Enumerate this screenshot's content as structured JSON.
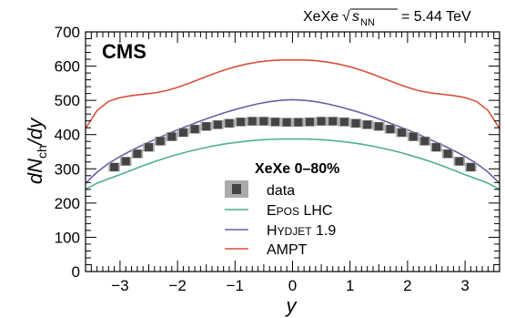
{
  "header": {
    "system": "XeXe",
    "sqrt_label": "s",
    "sqrt_sub": "NN",
    "energy": "= 5.44 TeV"
  },
  "experiment_label": "CMS",
  "colors": {
    "data_fill": "#444444",
    "data_syst": "#aaaaaa",
    "epos": "#4daf94",
    "hydjet": "#6b5fa8",
    "ampt": "#d9513b"
  },
  "chart_data": {
    "type": "line",
    "xlabel": "y",
    "ylabel_main": "dN",
    "ylabel_sub": "ch",
    "ylabel_tail": "/dy",
    "xlim": [
      -3.6,
      3.6
    ],
    "ylim": [
      0,
      700
    ],
    "xticks": [
      -3,
      -2,
      -1,
      0,
      1,
      2,
      3
    ],
    "yticks": [
      0,
      100,
      200,
      300,
      400,
      500,
      600,
      700
    ],
    "grid": false,
    "legend": {
      "placement": "center-right",
      "title": "XeXe 0–80%",
      "entries": [
        "data",
        "Epos LHC",
        "Hydjet 1.9",
        "AMPT"
      ]
    },
    "data_points": {
      "x": [
        -3.1,
        -2.9,
        -2.7,
        -2.5,
        -2.3,
        -2.1,
        -1.9,
        -1.7,
        -1.5,
        -1.3,
        -1.1,
        -0.9,
        -0.7,
        -0.5,
        -0.3,
        -0.1,
        0.1,
        0.3,
        0.5,
        0.7,
        0.9,
        1.1,
        1.3,
        1.5,
        1.7,
        1.9,
        2.1,
        2.3,
        2.5,
        2.7,
        2.9,
        3.1
      ],
      "y": [
        305,
        322,
        344,
        363,
        381,
        394,
        406,
        416,
        424,
        429,
        433,
        437,
        439,
        439,
        437,
        436,
        436,
        437,
        439,
        439,
        437,
        433,
        429,
        424,
        416,
        406,
        394,
        381,
        363,
        344,
        322,
        305
      ],
      "syst_half_height": 13,
      "syst_half_width": 0.1
    },
    "series": [
      {
        "name": "Epos LHC",
        "x": [
          -3.6,
          -3.4,
          -3.2,
          -3.0,
          -2.8,
          -2.6,
          -2.4,
          -2.2,
          -2.0,
          -1.8,
          -1.6,
          -1.4,
          -1.2,
          -1.0,
          -0.8,
          -0.6,
          -0.4,
          -0.2,
          0.0,
          0.2,
          0.4,
          0.6,
          0.8,
          1.0,
          1.2,
          1.4,
          1.6,
          1.8,
          2.0,
          2.2,
          2.4,
          2.6,
          2.8,
          3.0,
          3.2,
          3.4,
          3.6
        ],
        "y": [
          240,
          258,
          271,
          283,
          296,
          309,
          321,
          332,
          342,
          351,
          359,
          366,
          372,
          377,
          381,
          384,
          386,
          387,
          387,
          387,
          386,
          384,
          381,
          377,
          372,
          366,
          359,
          351,
          342,
          332,
          321,
          309,
          296,
          283,
          271,
          258,
          240
        ]
      },
      {
        "name": "Hydjet 1.9",
        "x": [
          -3.6,
          -3.4,
          -3.2,
          -3.0,
          -2.8,
          -2.6,
          -2.4,
          -2.2,
          -2.0,
          -1.8,
          -1.6,
          -1.4,
          -1.2,
          -1.0,
          -0.8,
          -0.6,
          -0.4,
          -0.2,
          0.0,
          0.2,
          0.4,
          0.6,
          0.8,
          1.0,
          1.2,
          1.4,
          1.6,
          1.8,
          2.0,
          2.2,
          2.4,
          2.6,
          2.8,
          3.0,
          3.2,
          3.4,
          3.6
        ],
        "y": [
          258,
          290,
          316,
          336,
          354,
          370,
          385,
          400,
          414,
          427,
          440,
          452,
          463,
          473,
          482,
          490,
          496,
          500,
          502,
          500,
          496,
          490,
          482,
          473,
          463,
          452,
          440,
          427,
          414,
          400,
          385,
          370,
          354,
          336,
          316,
          290,
          258
        ]
      },
      {
        "name": "AMPT",
        "x": [
          -3.6,
          -3.4,
          -3.2,
          -3.0,
          -2.8,
          -2.6,
          -2.4,
          -2.2,
          -2.0,
          -1.8,
          -1.6,
          -1.4,
          -1.2,
          -1.0,
          -0.8,
          -0.6,
          -0.4,
          -0.2,
          0.0,
          0.2,
          0.4,
          0.6,
          0.8,
          1.0,
          1.2,
          1.4,
          1.6,
          1.8,
          2.0,
          2.2,
          2.4,
          2.6,
          2.8,
          3.0,
          3.2,
          3.4,
          3.6
        ],
        "y": [
          418,
          470,
          497,
          508,
          514,
          518,
          522,
          528,
          538,
          550,
          563,
          576,
          588,
          598,
          606,
          612,
          616,
          618,
          618,
          618,
          616,
          612,
          606,
          598,
          588,
          576,
          563,
          550,
          538,
          528,
          522,
          518,
          514,
          508,
          497,
          470,
          418
        ]
      }
    ]
  }
}
